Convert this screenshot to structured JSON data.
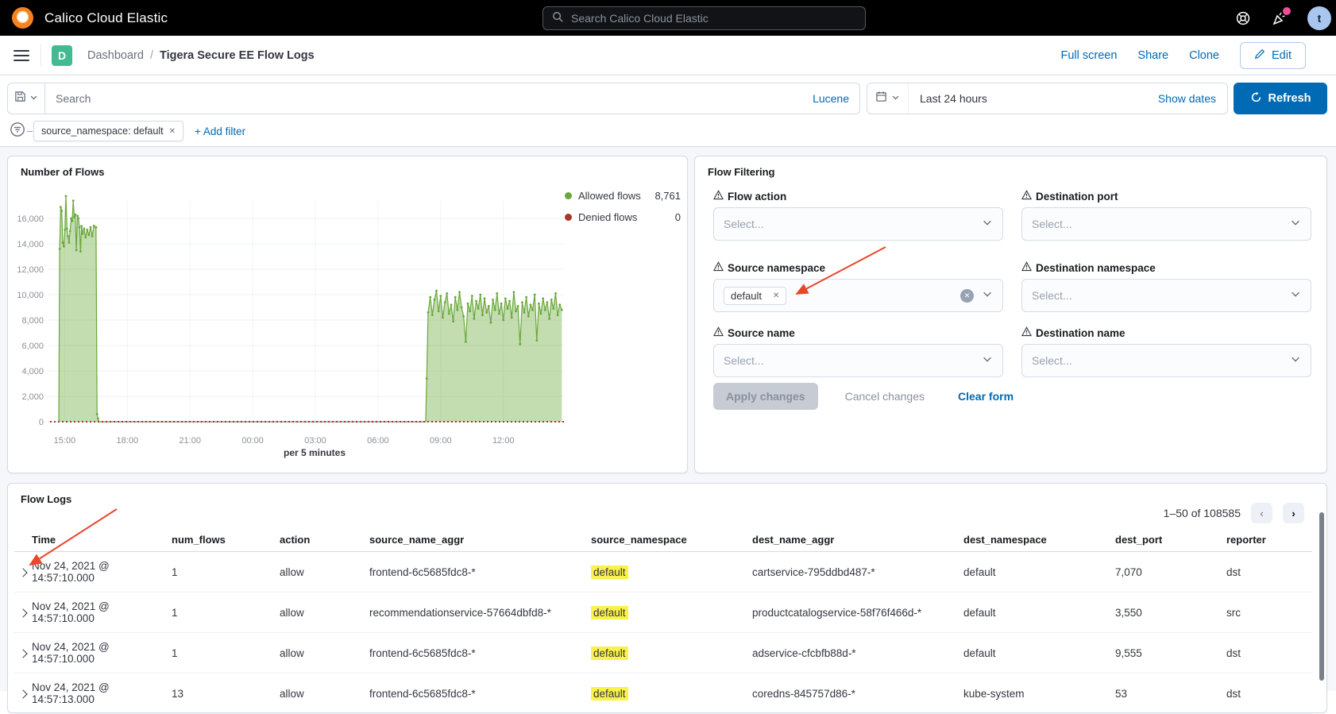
{
  "colors": {
    "accent_blue": "#006BB4",
    "allowed_green": "#69A839",
    "denied_red": "#A8362B",
    "highlight_yellow": "#FAF14A",
    "app_badge_green": "#43BB92",
    "notification_pink": "#F04E98",
    "annotation_red": "#E8472B"
  },
  "topbar": {
    "title": "Calico Cloud Elastic",
    "search_placeholder": "Search Calico Cloud Elastic",
    "avatar_initial": "t"
  },
  "crumbbar": {
    "app_badge": "D",
    "root": "Dashboard",
    "separator": "/",
    "current": "Tigera Secure EE Flow Logs",
    "full_screen": "Full screen",
    "share": "Share",
    "clone": "Clone",
    "edit": "Edit"
  },
  "querybar": {
    "search_placeholder": "Search",
    "language": "Lucene",
    "time_range": "Last 24 hours",
    "show_dates": "Show dates",
    "refresh": "Refresh"
  },
  "filterbar": {
    "pill": "source_namespace: default",
    "add_filter": "+ Add filter"
  },
  "flows_panel": {
    "title": "Number of Flows",
    "legend": [
      {
        "label": "Allowed flows",
        "value": "8,761"
      },
      {
        "label": "Denied flows",
        "value": "0"
      }
    ]
  },
  "chart_data": {
    "type": "area",
    "title": "Number of Flows",
    "xlabel": "per 5 minutes",
    "grid": true,
    "legend_position": "right",
    "x_range": [
      14.3,
      39.0
    ],
    "ylim": [
      0,
      18000
    ],
    "y_ticks": [
      0,
      2000,
      4000,
      6000,
      8000,
      10000,
      12000,
      14000,
      16000
    ],
    "x_ticks": [
      {
        "t": 15,
        "label": "15:00"
      },
      {
        "t": 18,
        "label": "18:00"
      },
      {
        "t": 21,
        "label": "21:00"
      },
      {
        "t": 24,
        "label": "00:00"
      },
      {
        "t": 27,
        "label": "03:00"
      },
      {
        "t": 30,
        "label": "06:00"
      },
      {
        "t": 33,
        "label": "09:00"
      },
      {
        "t": 36,
        "label": "12:00"
      }
    ],
    "series": [
      {
        "name": "Allowed flows",
        "total": 8761,
        "color": "#69A839",
        "fill": "rgba(105,168,57,0.40)",
        "points": [
          [
            14.72,
            0
          ],
          [
            14.76,
            13600
          ],
          [
            14.81,
            16900
          ],
          [
            14.86,
            16600
          ],
          [
            14.91,
            14100
          ],
          [
            14.96,
            13800
          ],
          [
            15.01,
            15100
          ],
          [
            15.06,
            17750
          ],
          [
            15.11,
            15200
          ],
          [
            15.16,
            14600
          ],
          [
            15.21,
            14100
          ],
          [
            15.26,
            15000
          ],
          [
            15.31,
            16000
          ],
          [
            15.36,
            15800
          ],
          [
            15.41,
            17400
          ],
          [
            15.46,
            16100
          ],
          [
            15.51,
            16300
          ],
          [
            15.56,
            13500
          ],
          [
            15.61,
            16200
          ],
          [
            15.66,
            16000
          ],
          [
            15.71,
            15300
          ],
          [
            15.76,
            13400
          ],
          [
            15.81,
            15400
          ],
          [
            15.86,
            14800
          ],
          [
            15.93,
            15200
          ],
          [
            16.0,
            14500
          ],
          [
            16.08,
            15100
          ],
          [
            16.16,
            14700
          ],
          [
            16.24,
            15300
          ],
          [
            16.32,
            14600
          ],
          [
            16.4,
            15420
          ],
          [
            16.5,
            15300
          ],
          [
            16.55,
            600
          ],
          [
            16.6,
            250
          ],
          [
            16.63,
            0
          ],
          [
            32.28,
            0
          ],
          [
            32.33,
            3400
          ],
          [
            32.4,
            8600
          ],
          [
            32.5,
            9800
          ],
          [
            32.6,
            8400
          ],
          [
            32.7,
            9600
          ],
          [
            32.8,
            10300
          ],
          [
            32.9,
            8700
          ],
          [
            33.0,
            9900
          ],
          [
            33.1,
            8200
          ],
          [
            33.2,
            9400
          ],
          [
            33.3,
            10100
          ],
          [
            33.4,
            8500
          ],
          [
            33.5,
            9200
          ],
          [
            33.6,
            7900
          ],
          [
            33.7,
            9800
          ],
          [
            33.8,
            8800
          ],
          [
            33.9,
            10200
          ],
          [
            34.0,
            9000
          ],
          [
            34.1,
            8300
          ],
          [
            34.2,
            6300
          ],
          [
            34.3,
            9300
          ],
          [
            34.4,
            8700
          ],
          [
            34.5,
            9900
          ],
          [
            34.6,
            8100
          ],
          [
            34.7,
            9500
          ],
          [
            34.8,
            8900
          ],
          [
            34.9,
            10000
          ],
          [
            35.0,
            8400
          ],
          [
            35.1,
            9700
          ],
          [
            35.2,
            8600
          ],
          [
            35.3,
            9100
          ],
          [
            35.4,
            7800
          ],
          [
            35.5,
            9600
          ],
          [
            35.6,
            8800
          ],
          [
            35.7,
            10100
          ],
          [
            35.8,
            8500
          ],
          [
            35.9,
            9300
          ],
          [
            36.0,
            8000
          ],
          [
            36.1,
            9700
          ],
          [
            36.2,
            8900
          ],
          [
            36.3,
            9500
          ],
          [
            36.4,
            8200
          ],
          [
            36.5,
            10200
          ],
          [
            36.6,
            8700
          ],
          [
            36.7,
            9100
          ],
          [
            36.8,
            6100
          ],
          [
            36.9,
            9400
          ],
          [
            37.0,
            8600
          ],
          [
            37.1,
            9800
          ],
          [
            37.2,
            8300
          ],
          [
            37.3,
            9200
          ],
          [
            37.4,
            8800
          ],
          [
            37.5,
            10000
          ],
          [
            37.6,
            6400
          ],
          [
            37.7,
            9300
          ],
          [
            37.8,
            8500
          ],
          [
            37.9,
            9700
          ],
          [
            38.0,
            8800
          ],
          [
            38.1,
            9400
          ],
          [
            38.2,
            8100
          ],
          [
            38.3,
            9600
          ],
          [
            38.4,
            8900
          ],
          [
            38.5,
            10100
          ],
          [
            38.6,
            8400
          ],
          [
            38.7,
            9200
          ],
          [
            38.8,
            8800
          ]
        ]
      },
      {
        "name": "Denied flows",
        "total": 0,
        "color": "#A8362B",
        "style": "dashed-baseline",
        "points": [
          [
            14.3,
            0
          ],
          [
            39.0,
            0
          ]
        ]
      }
    ]
  },
  "flow_filtering": {
    "title": "Flow Filtering",
    "fields": [
      {
        "label": "Flow action",
        "placeholder": "Select..."
      },
      {
        "label": "Destination port",
        "placeholder": "Select..."
      },
      {
        "label": "Source namespace",
        "selected": "default"
      },
      {
        "label": "Destination namespace",
        "placeholder": "Select..."
      },
      {
        "label": "Source name",
        "placeholder": "Select..."
      },
      {
        "label": "Destination name",
        "placeholder": "Select..."
      }
    ],
    "apply": "Apply changes",
    "cancel": "Cancel changes",
    "clear": "Clear form"
  },
  "flow_logs": {
    "title": "Flow Logs",
    "pagination": "1–50 of 108585",
    "highlight_column": "source_namespace",
    "columns": [
      "Time",
      "num_flows",
      "action",
      "source_name_aggr",
      "source_namespace",
      "dest_name_aggr",
      "dest_namespace",
      "dest_port",
      "reporter"
    ],
    "rows": [
      [
        "Nov 24, 2021 @ 14:57:10.000",
        "1",
        "allow",
        "frontend-6c5685fdc8-*",
        "default",
        "cartservice-795ddbd487-*",
        "default",
        "7,070",
        "dst"
      ],
      [
        "Nov 24, 2021 @ 14:57:10.000",
        "1",
        "allow",
        "recommendationservice-57664dbfd8-*",
        "default",
        "productcatalogservice-58f76f466d-*",
        "default",
        "3,550",
        "src"
      ],
      [
        "Nov 24, 2021 @ 14:57:10.000",
        "1",
        "allow",
        "frontend-6c5685fdc8-*",
        "default",
        "adservice-cfcbfb88d-*",
        "default",
        "9,555",
        "dst"
      ],
      [
        "Nov 24, 2021 @ 14:57:13.000",
        "13",
        "allow",
        "frontend-6c5685fdc8-*",
        "default",
        "coredns-845757d86-*",
        "kube-system",
        "53",
        "dst"
      ]
    ]
  }
}
